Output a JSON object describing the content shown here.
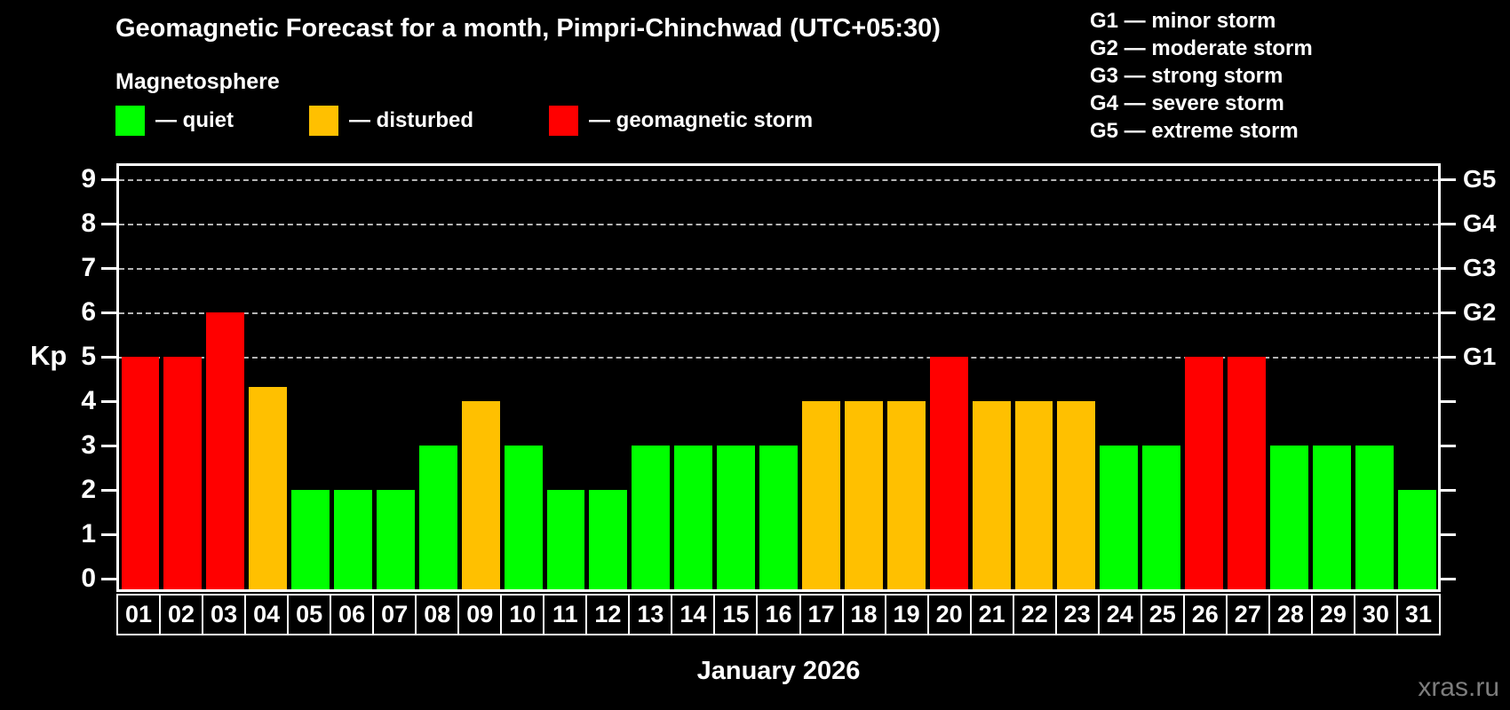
{
  "header": {
    "title": "Geomagnetic Forecast for a month, Pimpri-Chinchwad (UTC+05:30)",
    "subtitle": "Magnetosphere"
  },
  "legend": {
    "items": [
      {
        "key": "quiet",
        "label": "— quiet",
        "color": "#00ff00"
      },
      {
        "key": "disturbed",
        "label": "— disturbed",
        "color": "#ffc000"
      },
      {
        "key": "storm",
        "label": "— geomagnetic storm",
        "color": "#ff0000"
      }
    ]
  },
  "g_scale_legend": {
    "lines": [
      "G1 — minor storm",
      "G2 — moderate storm",
      "G3 — strong storm",
      "G4 — severe storm",
      "G5 — extreme storm"
    ]
  },
  "chart_data": {
    "type": "bar",
    "title": "Geomagnetic Forecast for a month, Pimpri-Chinchwad (UTC+05:30)",
    "xlabel": "January 2026",
    "ylabel": "Kp",
    "ylim": [
      0,
      9
    ],
    "yticks": [
      0,
      1,
      2,
      3,
      4,
      5,
      6,
      7,
      8,
      9
    ],
    "gridlines_at": [
      5,
      6,
      7,
      8,
      9
    ],
    "grid": true,
    "legend_position": "top",
    "right_axis": [
      {
        "label": "G1",
        "kp": 5
      },
      {
        "label": "G2",
        "kp": 6
      },
      {
        "label": "G3",
        "kp": 7
      },
      {
        "label": "G4",
        "kp": 8
      },
      {
        "label": "G5",
        "kp": 9
      }
    ],
    "categories": [
      "01",
      "02",
      "03",
      "04",
      "05",
      "06",
      "07",
      "08",
      "09",
      "10",
      "11",
      "12",
      "13",
      "14",
      "15",
      "16",
      "17",
      "18",
      "19",
      "20",
      "21",
      "22",
      "23",
      "24",
      "25",
      "26",
      "27",
      "28",
      "29",
      "30",
      "31"
    ],
    "values": [
      5,
      5,
      6,
      4.33,
      2,
      2,
      2,
      3,
      4,
      3,
      2,
      2,
      3,
      3,
      3,
      3,
      4,
      4,
      4,
      5,
      4,
      4,
      4,
      3,
      3,
      5,
      5,
      3,
      3,
      3,
      2
    ],
    "status": [
      "storm",
      "storm",
      "storm",
      "disturbed",
      "quiet",
      "quiet",
      "quiet",
      "quiet",
      "disturbed",
      "quiet",
      "quiet",
      "quiet",
      "quiet",
      "quiet",
      "quiet",
      "quiet",
      "disturbed",
      "disturbed",
      "disturbed",
      "storm",
      "disturbed",
      "disturbed",
      "disturbed",
      "quiet",
      "quiet",
      "storm",
      "storm",
      "quiet",
      "quiet",
      "quiet",
      "quiet"
    ],
    "colors": {
      "quiet": "#00ff00",
      "disturbed": "#ffc000",
      "storm": "#ff0000"
    }
  },
  "footer": {
    "month_label": "January 2026",
    "watermark": "xras.ru"
  }
}
